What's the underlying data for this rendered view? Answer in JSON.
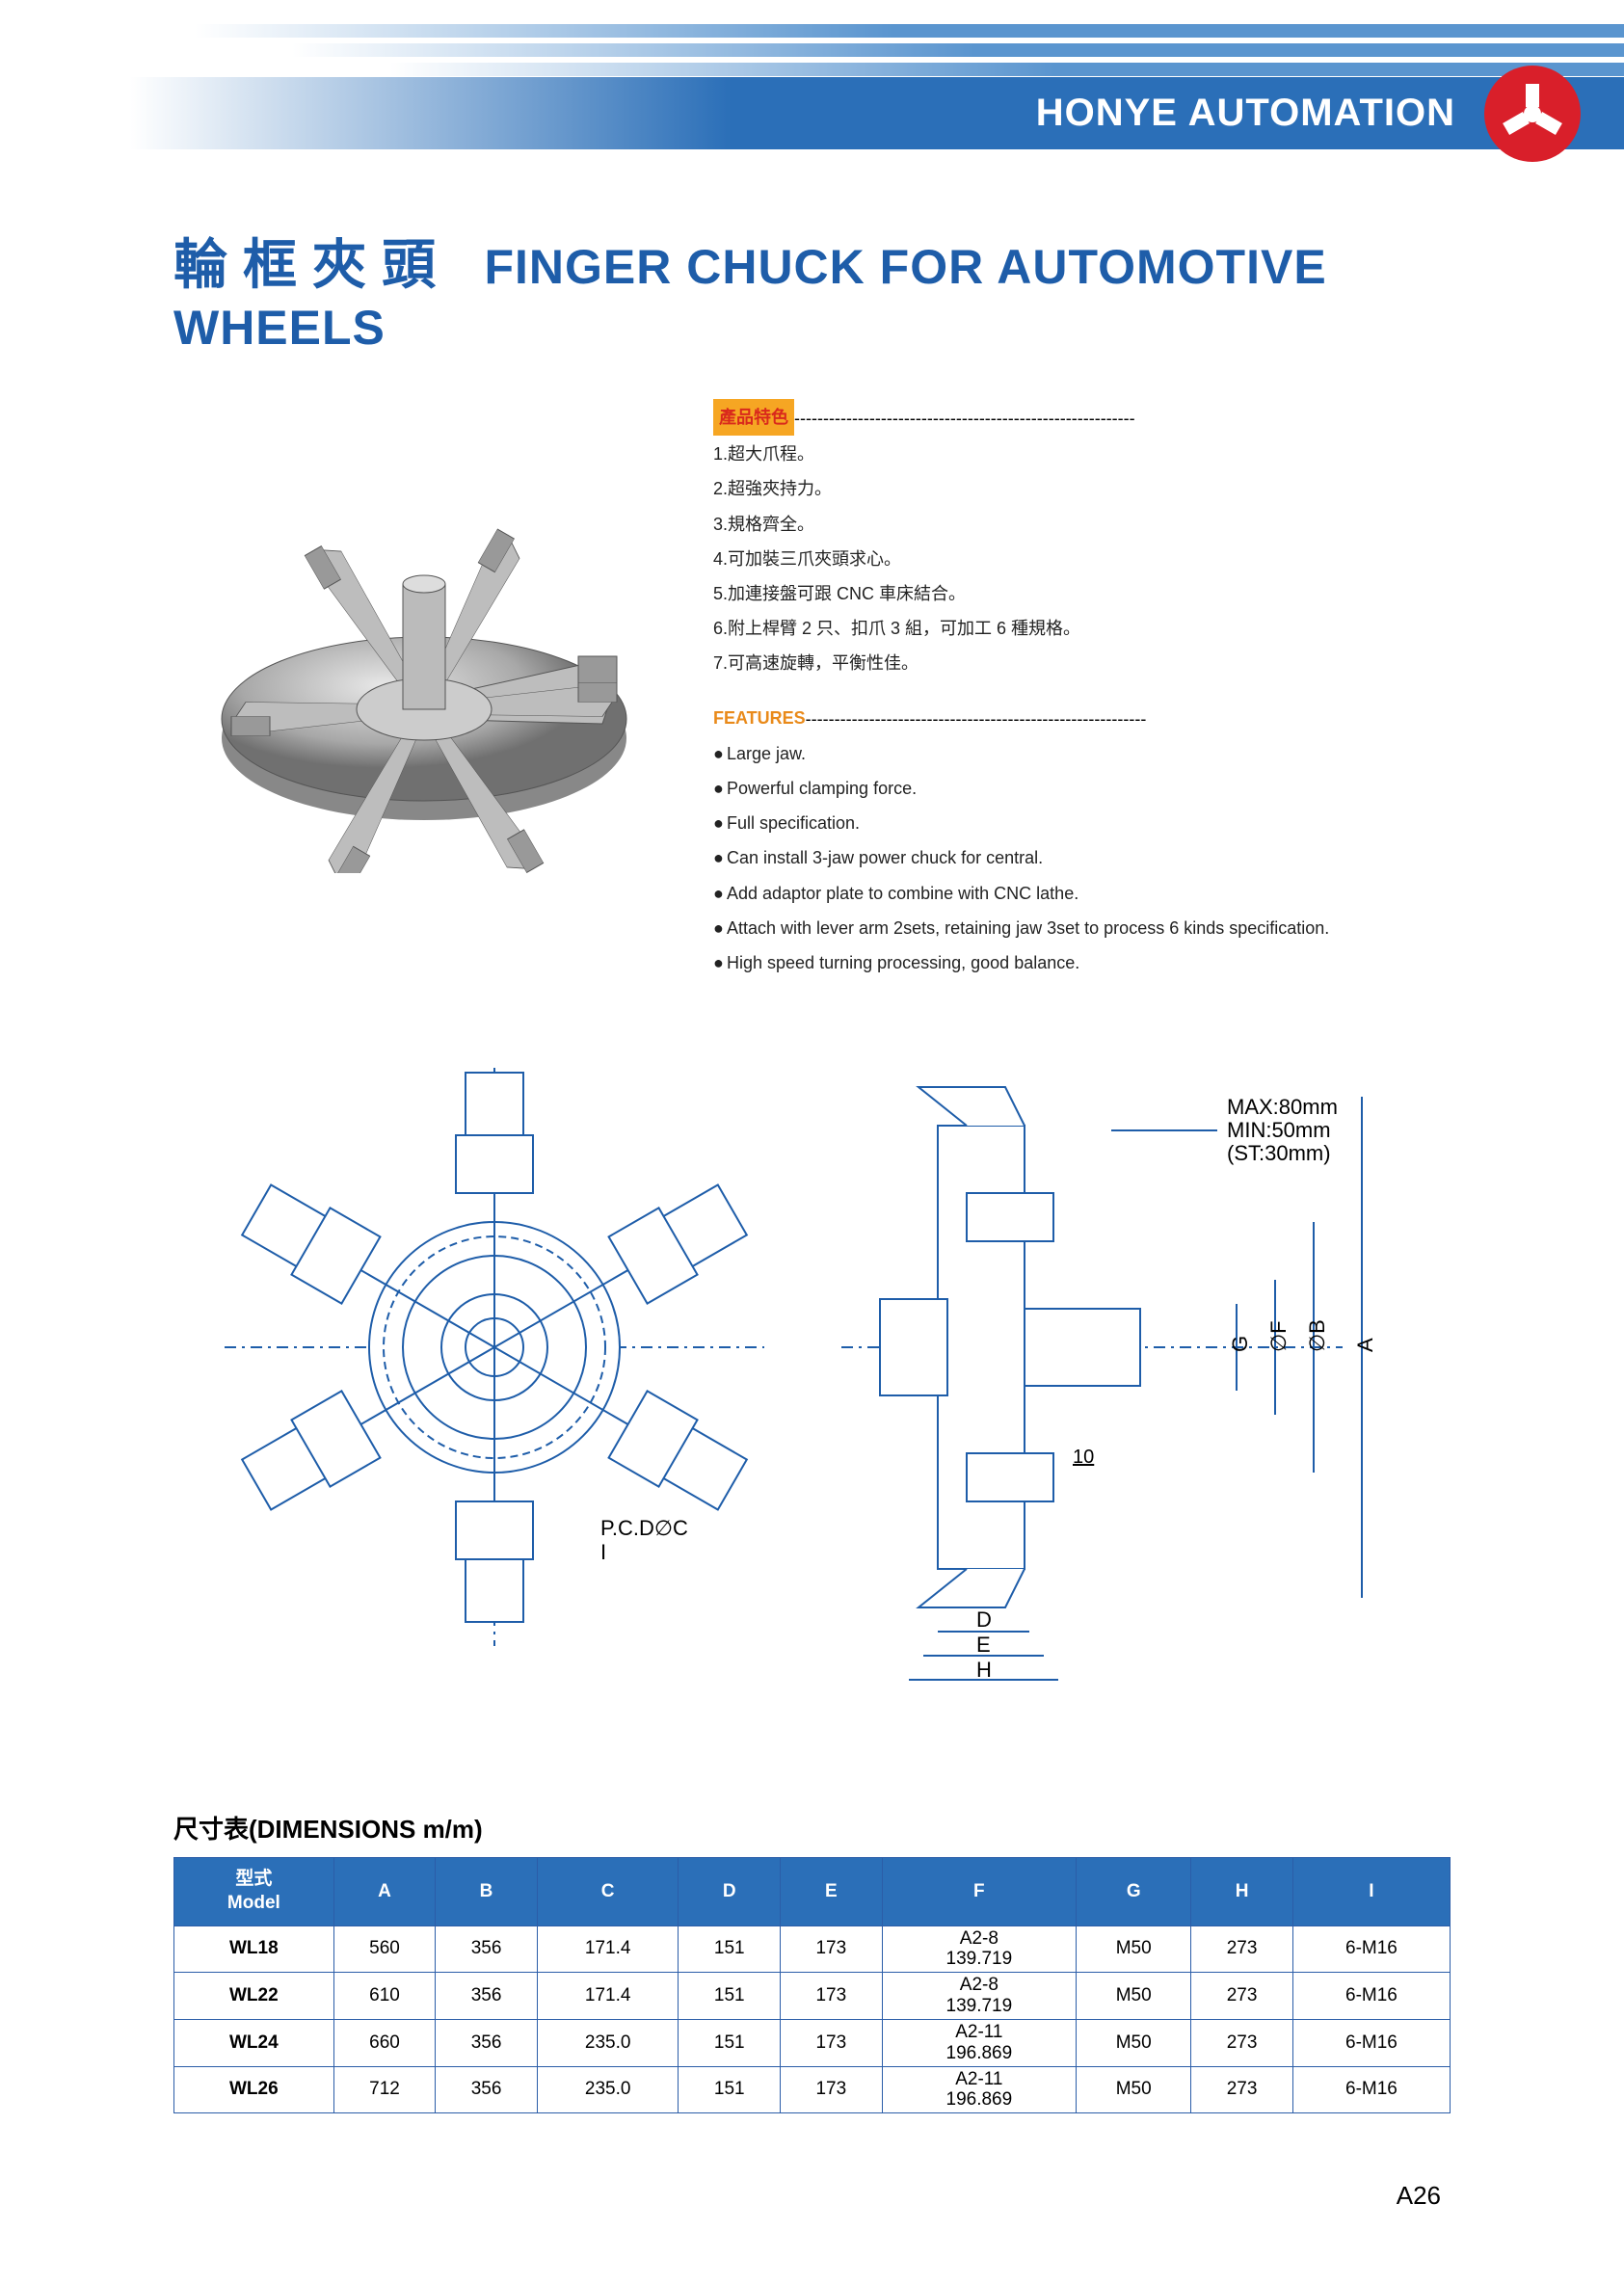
{
  "colors": {
    "band_blue": "#2b6fb8",
    "band_stripe": "#5a95cf",
    "logo_red": "#d91f2a",
    "title_blue": "#1e5da9",
    "heading_bg_orange": "#f6a623",
    "heading_text_red": "#d9291c",
    "heading_feature_text": "#e98a1a",
    "table_header_bg": "#2b6fb8",
    "table_border": "#2b5da8",
    "diagram_stroke": "#1e5da9",
    "text_dark": "#222222"
  },
  "header": {
    "company": "HONYE AUTOMATION"
  },
  "title": {
    "cn": "輪框夾頭",
    "en": "FINGER CHUCK FOR AUTOMOTIVE WHEELS"
  },
  "features_cn": {
    "heading": "產品特色",
    "items": [
      "1.超大爪程。",
      "2.超強夾持力。",
      "3.規格齊全。",
      "4.可加裝三爪夾頭求心。",
      "5.加連接盤可跟 CNC 車床結合。",
      "6.附上桿臂 2 只、扣爪 3 組，可加工 6 種規格。",
      "7.可高速旋轉，平衡性佳。"
    ]
  },
  "features_en": {
    "heading": "FEATURES",
    "items": [
      "Large jaw.",
      "Powerful clamping force.",
      "Full specification.",
      "Can install 3-jaw power chuck for central.",
      "Add adaptor plate to combine with CNC lathe.",
      "Attach with lever arm 2sets, retaining jaw 3set to process 6 kinds specification.",
      "High speed turning processing, good balance."
    ]
  },
  "diagram": {
    "pcd_label": "P.C.D∅C",
    "pcd_sub": "I",
    "stroke_text1": "MAX:80mm",
    "stroke_text2": "MIN:50mm",
    "stroke_text3": "(ST:30mm)",
    "dim_A": "A",
    "dim_B": "∅B",
    "dim_F": "∅F",
    "dim_G": "G",
    "dim_D": "D",
    "dim_E": "E",
    "dim_H": "H",
    "dim_10": "10"
  },
  "dimensions": {
    "title": "尺寸表(DIMENSIONS  m/m)",
    "model_header_cn": "型式",
    "model_header_en": "Model",
    "columns": [
      "A",
      "B",
      "C",
      "D",
      "E",
      "F",
      "G",
      "H",
      "I"
    ],
    "rows": [
      {
        "model": "WL18",
        "vals": [
          "560",
          "356",
          "171.4",
          "151",
          "173",
          "A2-8\n139.719",
          "M50",
          "273",
          "6-M16"
        ]
      },
      {
        "model": "WL22",
        "vals": [
          "610",
          "356",
          "171.4",
          "151",
          "173",
          "A2-8\n139.719",
          "M50",
          "273",
          "6-M16"
        ]
      },
      {
        "model": "WL24",
        "vals": [
          "660",
          "356",
          "235.0",
          "151",
          "173",
          "A2-11\n196.869",
          "M50",
          "273",
          "6-M16"
        ]
      },
      {
        "model": "WL26",
        "vals": [
          "712",
          "356",
          "235.0",
          "151",
          "173",
          "A2-11\n196.869",
          "M50",
          "273",
          "6-M16"
        ]
      }
    ]
  },
  "page_number": "A26",
  "dashes": "-----------------------------------------------------------"
}
